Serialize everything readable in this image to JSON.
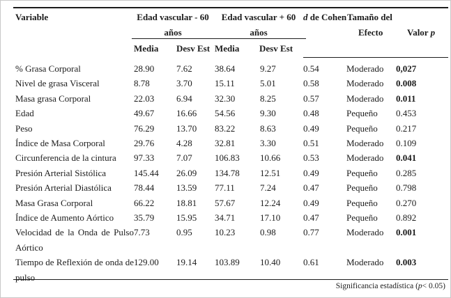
{
  "page": {
    "background": "#ffffff",
    "border_color": "#c8c8c8",
    "text_color": "#1c1c1c"
  },
  "table": {
    "header": {
      "variable": "Variable",
      "group1": {
        "line1": "Edad vascular - 60",
        "line2": "años"
      },
      "group2": {
        "line1": "Edad vascular + 60",
        "line2": "años"
      },
      "d_cohen": {
        "italic": "d",
        "rest": " de Cohen"
      },
      "effect": {
        "line1": "Tamaño del",
        "line2": "Efecto"
      },
      "valor_p": {
        "prefix": "Valor ",
        "italic": "p"
      },
      "stats": {
        "media1": "Media",
        "desv1": "Desv Est",
        "media2": "Media",
        "desv2": "Desv Est"
      }
    },
    "rows": [
      {
        "label": [
          "% Grasa Corporal"
        ],
        "justify": false,
        "media1": "28.90",
        "desv1": "7.62",
        "media2": "38.64",
        "desv2": "9.27",
        "d": "0.54",
        "efecto": "Moderado",
        "p": "0,027",
        "p_bold": true
      },
      {
        "label": [
          "Nivel de grasa Visceral"
        ],
        "justify": false,
        "media1": "8.78",
        "desv1": "3.70",
        "media2": "15.11",
        "desv2": "5.01",
        "d": "0.58",
        "efecto": "Moderado",
        "p": "0.008",
        "p_bold": true
      },
      {
        "label": [
          "Masa grasa Corporal"
        ],
        "justify": false,
        "media1": "22.03",
        "desv1": "6.94",
        "media2": "32.30",
        "desv2": "8.25",
        "d": "0.57",
        "efecto": "Moderado",
        "p": "0.011",
        "p_bold": true
      },
      {
        "label": [
          "Edad"
        ],
        "justify": false,
        "media1": "49.67",
        "desv1": "16.66",
        "media2": "54.56",
        "desv2": "9.30",
        "d": "0.48",
        "efecto": "Pequeño",
        "p": "0.453",
        "p_bold": false
      },
      {
        "label": [
          "Peso"
        ],
        "justify": false,
        "media1": "76.29",
        "desv1": "13.70",
        "media2": "83.22",
        "desv2": "8.63",
        "d": "0.49",
        "efecto": "Pequeño",
        "p": "0.217",
        "p_bold": false
      },
      {
        "label": [
          "Índice de Masa Corporal"
        ],
        "justify": false,
        "media1": "29.76",
        "desv1": "4.28",
        "media2": "32.81",
        "desv2": "3.30",
        "d": "0.51",
        "efecto": "Moderado",
        "p": "0.109",
        "p_bold": false
      },
      {
        "label": [
          "Circunferencia de la cintura"
        ],
        "justify": false,
        "media1": "97.33",
        "desv1": "7.07",
        "media2": "106.83",
        "desv2": "10.66",
        "d": "0.53",
        "efecto": "Moderado",
        "p": "0.041",
        "p_bold": true
      },
      {
        "label": [
          "Presión Arterial Sistólica"
        ],
        "justify": false,
        "media1": "145.44",
        "desv1": "26.09",
        "media2": "134.78",
        "desv2": "12.51",
        "d": "0.49",
        "efecto": "Pequeño",
        "p": "0.285",
        "p_bold": false
      },
      {
        "label": [
          "Presión Arterial Diastólica"
        ],
        "justify": false,
        "media1": "78.44",
        "desv1": "13.59",
        "media2": "77.11",
        "desv2": "7.24",
        "d": "0.47",
        "efecto": "Pequeño",
        "p": "0.798",
        "p_bold": false
      },
      {
        "label": [
          "Masa Grasa Corporal"
        ],
        "justify": false,
        "media1": "66.22",
        "desv1": "18.81",
        "media2": "57.67",
        "desv2": "12.24",
        "d": "0.49",
        "efecto": "Pequeño",
        "p": "0.270",
        "p_bold": false
      },
      {
        "label": [
          "Índice de Aumento Aórtico"
        ],
        "justify": false,
        "media1": "35.79",
        "desv1": "15.95",
        "media2": "34.71",
        "desv2": "17.10",
        "d": "0.47",
        "efecto": "Pequeño",
        "p": "0.892",
        "p_bold": false
      },
      {
        "label": [
          "Velocidad de la Onda de Pulso",
          "Aórtico"
        ],
        "justify": true,
        "media1": "7.73",
        "desv1": "0.95",
        "media2": "10.23",
        "desv2": "0.98",
        "d": "0.77",
        "efecto": "Moderado",
        "p": "0.001",
        "p_bold": true
      },
      {
        "label": [
          "Tiempo de Reflexión de onda de",
          "pulso"
        ],
        "justify": true,
        "media1": "129.00",
        "desv1": "19.14",
        "media2": "103.89",
        "desv2": "10.40",
        "d": "0.61",
        "efecto": "Moderado",
        "p": "0.003",
        "p_bold": true
      }
    ],
    "footer": {
      "prefix": "Significancia estadística (",
      "italic": "p",
      "suffix": "< 0.05)"
    }
  }
}
